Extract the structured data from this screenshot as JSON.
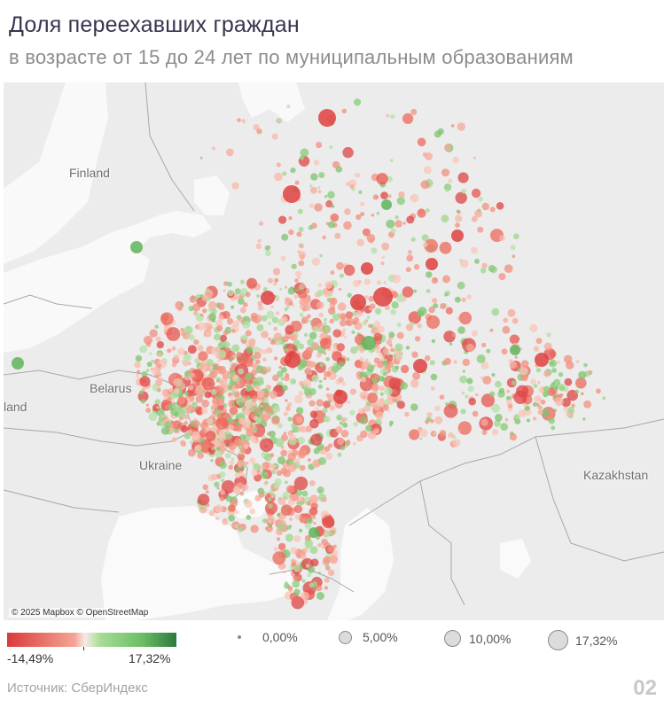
{
  "title": "Доля переехавших граждан",
  "subtitle": "в возрасте от 15 до 24 лет по муниципальным образованиям",
  "map": {
    "labels": {
      "finland": "Finland",
      "belarus": "Belarus",
      "poland": "land",
      "ukraine": "Ukraine",
      "kazakhstan": "Kazakhstan"
    },
    "attribution": "© 2025 Mapbox © OpenStreetMap",
    "colors": {
      "negative": "#d93a3a",
      "positive": "#2a7a3e",
      "neutral": "#f4ede6",
      "land": "#e9e9e9",
      "water": "#fafafa"
    }
  },
  "color_legend": {
    "min": "-14,49%",
    "max": "17,32%"
  },
  "size_legend": [
    {
      "label": "0,00%"
    },
    {
      "label": "5,00%"
    },
    {
      "label": "10,00%"
    },
    {
      "label": "17,32%"
    }
  ],
  "source": "Источник: СберИндекс",
  "page_number": "02"
}
